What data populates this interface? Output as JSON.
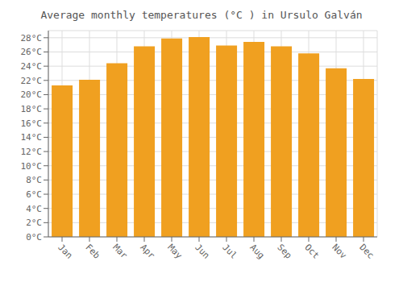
{
  "chart_data": {
    "type": "bar",
    "title": "Average monthly temperatures (°C ) in Ursulo Galván",
    "categories": [
      "Jan",
      "Feb",
      "Mar",
      "Apr",
      "May",
      "Jun",
      "Jul",
      "Aug",
      "Sep",
      "Oct",
      "Nov",
      "Dec"
    ],
    "values": [
      21.3,
      22.1,
      24.4,
      26.8,
      27.9,
      28.1,
      26.9,
      27.4,
      26.8,
      25.8,
      23.7,
      22.2
    ],
    "color": "#F0A020",
    "ylim": [
      0,
      29
    ],
    "yticks": [
      {
        "value": 0,
        "label": "0°C"
      },
      {
        "value": 2,
        "label": "2°C"
      },
      {
        "value": 4,
        "label": "4°C"
      },
      {
        "value": 6,
        "label": "6°C"
      },
      {
        "value": 8,
        "label": "8°C"
      },
      {
        "value": 10,
        "label": "10°C"
      },
      {
        "value": 12,
        "label": "12°C"
      },
      {
        "value": 14,
        "label": "14°C"
      },
      {
        "value": 16,
        "label": "16°C"
      },
      {
        "value": 18,
        "label": "18°C"
      },
      {
        "value": 20,
        "label": "20°C"
      },
      {
        "value": 22,
        "label": "22°C"
      },
      {
        "value": 24,
        "label": "24°C"
      },
      {
        "value": 26,
        "label": "26°C"
      },
      {
        "value": 28,
        "label": "28°C"
      }
    ],
    "grid": true
  }
}
